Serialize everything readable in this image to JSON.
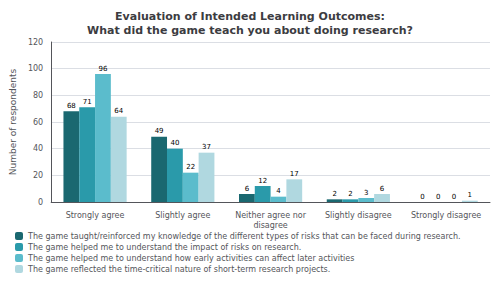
{
  "chart_data": {
    "type": "bar",
    "title": "Evaluation of Intended Learning Outcomes:\nWhat did the game teach you about doing research?",
    "ylabel": "Number of respondents",
    "categories": [
      "Strongly agree",
      "Slightly agree",
      "Neither agree nor\ndisagree",
      "Slightly disagree",
      "Strongly disagree"
    ],
    "series": [
      {
        "name": "The game taught/reinforced my knowledge of the different types of risks that can be faced during research.",
        "values": [
          68,
          49,
          6,
          2,
          0
        ],
        "color": "#1a6870"
      },
      {
        "name": "The game helped me to understand the impact of risks on research.",
        "values": [
          71,
          40,
          12,
          2,
          0
        ],
        "color": "#2a9aaa"
      },
      {
        "name": "The game helped me to understand how early activities can affect later activities",
        "values": [
          96,
          22,
          4,
          3,
          0
        ],
        "color": "#5bbccc"
      },
      {
        "name": "The game reflected the time-critical nature of short-term research projects.",
        "values": [
          64,
          37,
          17,
          6,
          1
        ],
        "color": "#b0d8e0"
      }
    ],
    "ylim": [
      0,
      120
    ],
    "yticks": [
      0,
      20,
      40,
      60,
      80,
      100,
      120
    ],
    "grid": true,
    "data_labels": true,
    "legend": "lower left"
  }
}
